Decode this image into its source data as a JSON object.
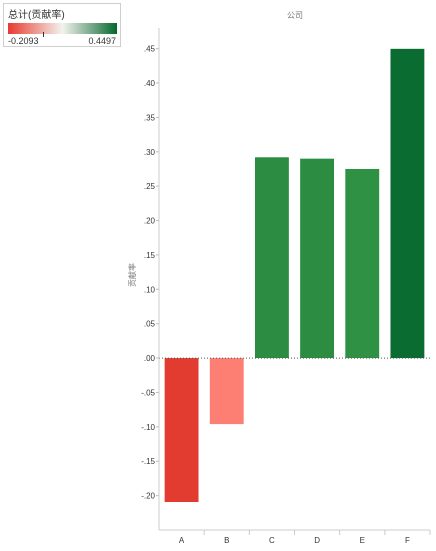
{
  "legend": {
    "title": "总计(贡献率)",
    "min_label": "-0.2093",
    "max_label": "0.4497",
    "min_value": -0.2093,
    "max_value": 0.4497,
    "marker_value": 0.0,
    "color_low": "#e8392f",
    "color_mid": "#f3f3ee",
    "color_high": "#06662f"
  },
  "chart_data": {
    "type": "bar",
    "title": "公司",
    "xlabel": "",
    "ylabel": "贡献率",
    "categories": [
      "A",
      "B",
      "C",
      "D",
      "E",
      "F"
    ],
    "values": [
      -0.2093,
      -0.096,
      0.292,
      0.29,
      0.275,
      0.4497
    ],
    "colors": [
      "#e23b30",
      "#fd7f73",
      "#2b8c42",
      "#2c8d42",
      "#2f9144",
      "#0a6c31"
    ],
    "ylim": [
      -0.25,
      0.48
    ],
    "yticks": [
      -0.2,
      -0.15,
      -0.1,
      -0.05,
      0.0,
      0.05,
      0.1,
      0.15,
      0.2,
      0.25,
      0.3,
      0.35,
      0.4,
      0.45
    ],
    "ytick_labels": [
      "-.20",
      "-.15",
      "-.10",
      "-.05",
      ".00",
      ".05",
      ".10",
      ".15",
      ".20",
      ".25",
      ".30",
      ".35",
      ".40",
      ".45"
    ],
    "grid": false
  }
}
